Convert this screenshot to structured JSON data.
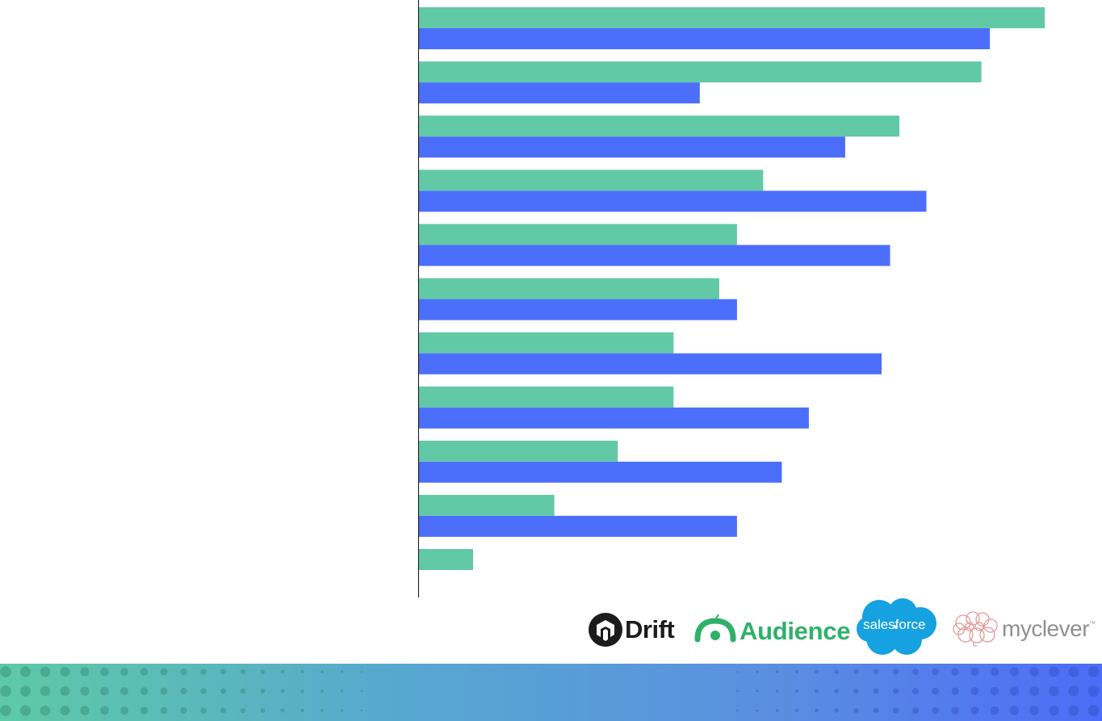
{
  "chart_data": {
    "type": "bar",
    "orientation": "horizontal",
    "categories": [
      "",
      "",
      "",
      "",
      "",
      "",
      "",
      "",
      "",
      "",
      ""
    ],
    "series": [
      {
        "values": [
          74,
          66.5,
          56.8,
          40.7,
          37.6,
          35.5,
          30.1,
          30.1,
          23.5,
          16,
          6.4
        ],
        "color": "#62c9a6"
      },
      {
        "values": [
          67.5,
          33.2,
          50.4,
          60,
          55.7,
          37.6,
          54.7,
          46.1,
          42.9,
          37.6,
          null
        ],
        "color": "#4b6ffb"
      }
    ],
    "xlim": [
      0,
      80
    ],
    "grid": false,
    "legend": "none"
  },
  "logos": {
    "drift": {
      "label": "Drift",
      "color": "#1c1c1c"
    },
    "audience": {
      "label": "Audience",
      "color": "#2fb06b"
    },
    "salesforce": {
      "label": "salesforce",
      "color": "#16a1e0"
    },
    "myclever": {
      "label": "myclever",
      "tm": "™",
      "color": "#8f8f8f"
    }
  },
  "footer": {
    "color_left": "#5fc9a6",
    "color_right": "#4d6cf7"
  }
}
